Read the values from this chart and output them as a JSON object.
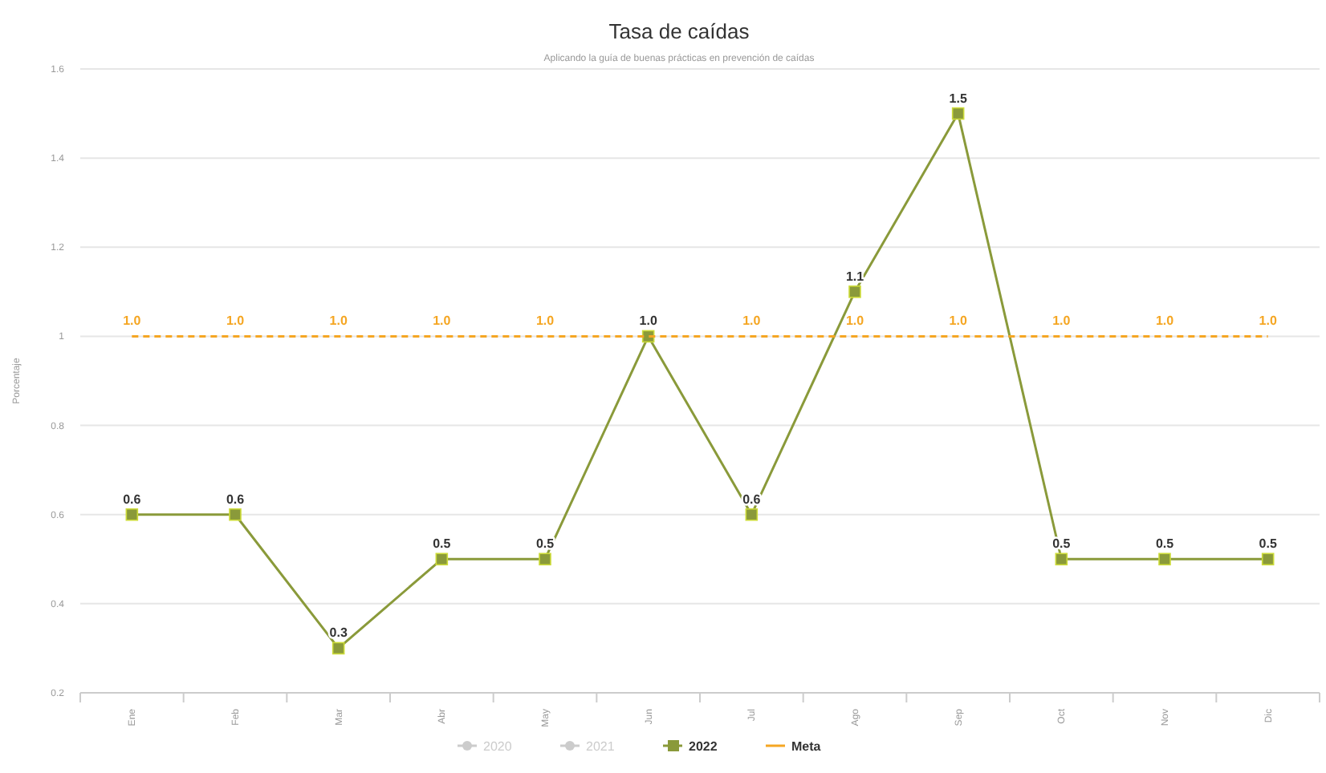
{
  "chart_data": {
    "type": "line",
    "title": "Tasa de caídas",
    "subtitle": "Aplicando la guía de buenas prácticas en prevención de caídas",
    "ylabel": "Porcentaje",
    "categories": [
      "Ene",
      "Feb",
      "Mar",
      "Abr",
      "May",
      "Jun",
      "Jul",
      "Ago",
      "Sep",
      "Oct",
      "Nov",
      "Dic"
    ],
    "series": [
      {
        "name": "2020",
        "color": "#cccccc",
        "values": [
          null,
          null,
          null,
          null,
          null,
          null,
          null,
          null,
          null,
          null,
          null,
          null
        ],
        "marker": "circle"
      },
      {
        "name": "2021",
        "color": "#cccccc",
        "values": [
          null,
          null,
          null,
          null,
          null,
          null,
          null,
          null,
          null,
          null,
          null,
          null
        ],
        "marker": "circle"
      },
      {
        "name": "2022",
        "color": "#8a9a3a",
        "values": [
          0.6,
          0.6,
          0.3,
          0.5,
          0.5,
          1.0,
          0.6,
          1.1,
          1.5,
          0.5,
          0.5,
          0.5
        ],
        "marker": "square",
        "line_style": "solid",
        "value_labels": [
          "0.6",
          "0.6",
          "0.3",
          "0.5",
          "0.5",
          "1.0",
          "0.6",
          "1.1",
          "1.5",
          "0.5",
          "0.5",
          "0.5"
        ]
      },
      {
        "name": "Meta",
        "color": "#f5a623",
        "values": [
          1,
          1,
          1,
          1,
          1,
          1,
          1,
          1,
          1,
          1,
          1,
          1
        ],
        "marker": "none",
        "line_style": "dashed",
        "value_labels": [
          "1.0",
          "1.0",
          "1.0",
          "1.0",
          "1.0",
          null,
          "1.0",
          "1.0",
          "1.0",
          "1.0",
          "1.0",
          "1.0"
        ]
      }
    ],
    "ylim": [
      0.2,
      1.6
    ],
    "yticks": [
      0.2,
      0.4,
      0.6,
      0.8,
      1,
      1.2,
      1.4,
      1.6
    ],
    "grid": "y",
    "legend": "bottom"
  }
}
